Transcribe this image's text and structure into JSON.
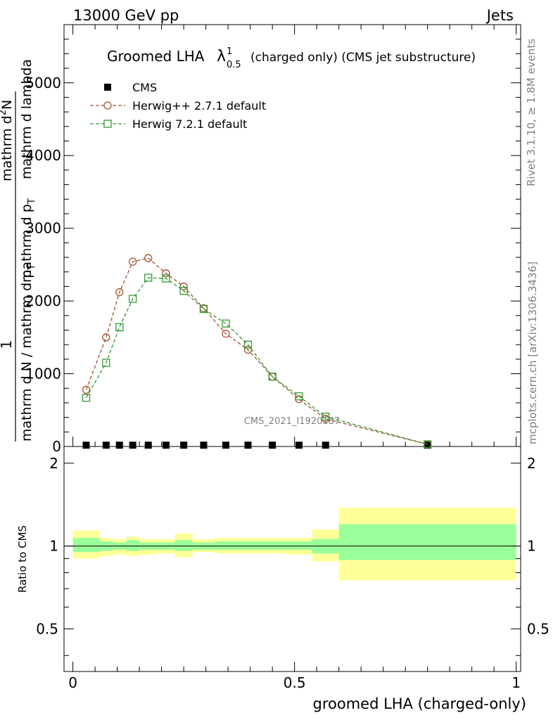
{
  "header": {
    "left": "13000 GeV pp",
    "right": "Jets"
  },
  "title": {
    "main": "Groomed LHA",
    "lambda": "λ",
    "sup": "1",
    "sub": "0.5",
    "rest": "(charged only) (CMS jet substructure)"
  },
  "ylabel_main": {
    "one": "1",
    "numerator": "mathrm d",
    "numerator_sup": "2",
    "numerator_end": "N",
    "denominator": "mathrm d N / mathrm d p",
    "denominator_sub": "T",
    "denominator_end": "mathrm d p",
    "denominator_end_sub": "T",
    "denominator_tail": "mathrm d lambda"
  },
  "ylabel_ratio": "Ratio to CMS",
  "xlabel": "groomed LHA (charged-only)",
  "side_texts": {
    "rivet": "Rivet 3.1.10, ≥ 1.8M events",
    "mcplots": "mcplots.cern.ch [arXiv:1306.3436]"
  },
  "watermark": "CMS_2021_I1920187",
  "legend": [
    {
      "label": "CMS",
      "marker": "filled-square",
      "color": "#000000"
    },
    {
      "label": "Herwig++ 2.7.1 default",
      "marker": "open-circle",
      "color": "#a0522d"
    },
    {
      "label": "Herwig 7.2.1 default",
      "marker": "open-square",
      "color": "#339933"
    }
  ],
  "y_ticks_main": [
    "0",
    "1000",
    "2000",
    "3000",
    "4000",
    "5000"
  ],
  "y_ticks_ratio": [
    "0.5",
    "1",
    "2"
  ],
  "x_ticks": [
    "0",
    "0.5",
    "1"
  ],
  "chart_data": {
    "type": "line",
    "xlim": [
      -0.02,
      1.01
    ],
    "ylim_main": [
      0,
      5800
    ],
    "ylim_ratio": [
      0.35,
      2.3
    ],
    "x": [
      0.03,
      0.075,
      0.105,
      0.135,
      0.17,
      0.21,
      0.25,
      0.295,
      0.345,
      0.395,
      0.45,
      0.51,
      0.57,
      0.8
    ],
    "series": [
      {
        "name": "CMS",
        "values": [
          18,
          18,
          18,
          18,
          18,
          18,
          18,
          18,
          18,
          18,
          18,
          18,
          18,
          18
        ]
      },
      {
        "name": "Herwig++ 2.7.1 default",
        "values": [
          780,
          1500,
          2120,
          2540,
          2590,
          2380,
          2200,
          1900,
          1550,
          1330,
          960,
          650,
          380,
          30
        ]
      },
      {
        "name": "Herwig 7.2.1 default",
        "values": [
          670,
          1150,
          1640,
          2030,
          2320,
          2310,
          2140,
          1890,
          1690,
          1400,
          960,
          690,
          410,
          30
        ]
      }
    ],
    "ratio_band_edges": [
      0.0,
      0.06,
      0.09,
      0.12,
      0.15,
      0.19,
      0.23,
      0.27,
      0.32,
      0.37,
      0.42,
      0.48,
      0.54,
      0.6,
      1.0
    ],
    "ratio_band_yellow": [
      [
        0.9,
        1.14
      ],
      [
        0.92,
        1.07
      ],
      [
        0.93,
        1.06
      ],
      [
        0.92,
        1.08
      ],
      [
        0.93,
        1.06
      ],
      [
        0.94,
        1.06
      ],
      [
        0.91,
        1.11
      ],
      [
        0.95,
        1.06
      ],
      [
        0.94,
        1.07
      ],
      [
        0.94,
        1.07
      ],
      [
        0.94,
        1.07
      ],
      [
        0.93,
        1.07
      ],
      [
        0.88,
        1.15
      ],
      [
        0.75,
        1.38
      ]
    ],
    "ratio_band_green": [
      [
        0.95,
        1.07
      ],
      [
        0.96,
        1.04
      ],
      [
        0.97,
        1.03
      ],
      [
        0.96,
        1.05
      ],
      [
        0.97,
        1.03
      ],
      [
        0.97,
        1.03
      ],
      [
        0.96,
        1.05
      ],
      [
        0.97,
        1.03
      ],
      [
        0.97,
        1.04
      ],
      [
        0.97,
        1.04
      ],
      [
        0.97,
        1.04
      ],
      [
        0.97,
        1.04
      ],
      [
        0.94,
        1.06
      ],
      [
        0.89,
        1.2
      ]
    ],
    "ratio_line": 1,
    "grid": false
  }
}
